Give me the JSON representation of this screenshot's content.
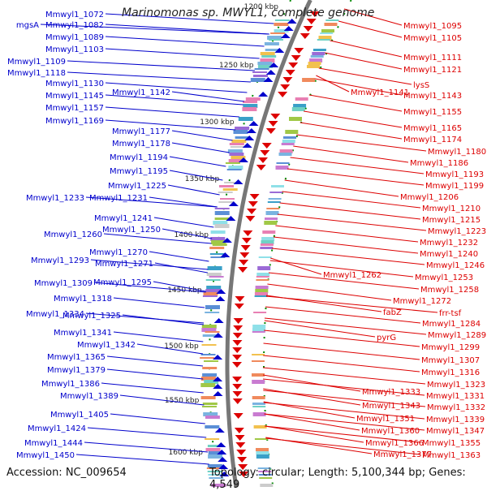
{
  "title": "Marinomonas sp. MWYL1, complete genome",
  "accession": "Accession: NC_009654",
  "topology": "Topology: circular; Length: 5,100,344 bp; Genes: 4,549",
  "colors": {
    "left_strand": "#0000cc",
    "right_strand": "#dd0000",
    "backbone": "#777777",
    "tick": "#008800"
  },
  "ruler": [
    "1200 kbp",
    "1250 kbp",
    "1300 kbp",
    "1350 kbp",
    "1400 kbp",
    "1450 kbp",
    "1500 kbp",
    "1550 kbp",
    "1600 kbp"
  ],
  "left_labels": [
    "Mmwyl1_1072",
    "mgsA",
    "Mmwyl1_1082",
    "Mmwyl1_1089",
    "Mmwyl1_1103",
    "Mmwyl1_1109",
    "Mmwyl1_1118",
    "Mmwyl1_1130",
    "Mmwyl1_1142",
    "Mmwyl1_1145",
    "Mmwyl1_1157",
    "Mmwyl1_1169",
    "Mmwyl1_1177",
    "Mmwyl1_1178",
    "Mmwyl1_1194",
    "Mmwyl1_1195",
    "Mmwyl1_1225",
    "Mmwyl1_1233",
    "Mmwyl1_1231",
    "Mmwyl1_1241",
    "Mmwyl1_1250",
    "Mmwyl1_1260",
    "Mmwyl1_1270",
    "Mmwyl1_1293",
    "Mmwyl1_1271",
    "Mmwyl1_1309",
    "Mmwyl1_1295",
    "Mmwyl1_1318",
    "Mmwyl1_1334",
    "Mmwyl1_1325",
    "Mmwyl1_1341",
    "Mmwyl1_1342",
    "Mmwyl1_1365",
    "Mmwyl1_1379",
    "Mmwyl1_1386",
    "Mmwyl1_1389",
    "Mmwyl1_1405",
    "Mmwyl1_1424",
    "Mmwyl1_1444",
    "Mmwyl1_1450"
  ],
  "right_labels": [
    "Mmwyl1_1095",
    "Mmwyl1_1105",
    "Mmwyl1_1111",
    "Mmwyl1_1121",
    "lysS",
    "Mmwyl1_1141",
    "Mmwyl1_1143",
    "Mmwyl1_1155",
    "Mmwyl1_1165",
    "Mmwyl1_1174",
    "Mmwyl1_1180",
    "Mmwyl1_1186",
    "Mmwyl1_1193",
    "Mmwyl1_1199",
    "Mmwyl1_1206",
    "Mmwyl1_1210",
    "Mmwyl1_1215",
    "Mmwyl1_1223",
    "Mmwyl1_1232",
    "Mmwyl1_1240",
    "Mmwyl1_1246",
    "Mmwyl1_1262",
    "Mmwyl1_1253",
    "Mmwyl1_1258",
    "Mmwyl1_1272",
    "frr-tsf",
    "fabZ",
    "Mmwyl1_1284",
    "Mmwyl1_1289",
    "pyrG",
    "Mmwyl1_1299",
    "Mmwyl1_1307",
    "Mmwyl1_1316",
    "Mmwyl1_1323",
    "Mmwyl1_1333",
    "Mmwyl1_1331",
    "Mmwyl1_1343",
    "Mmwyl1_1332",
    "Mmwyl1_1351",
    "Mmwyl1_1339",
    "Mmwyl1_1360",
    "Mmwyl1_1347",
    "Mmwyl1_1366",
    "Mmwyl1_1355",
    "Mmwyl1_1377",
    "Mmwyl1_1363"
  ]
}
